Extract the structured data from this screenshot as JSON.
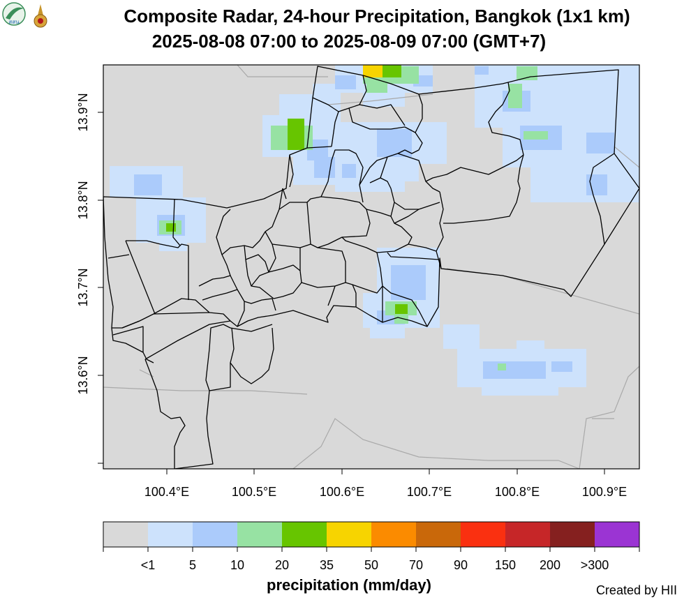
{
  "header": {
    "title_line1": "Composite Radar, 24-hour Precipitation, Bangkok (1x1 km)",
    "title_line2": "2025-08-08 07:00 to 2025-08-09 07:00 (GMT+7)"
  },
  "logos": [
    {
      "name": "hii-logo",
      "text": "สสน"
    },
    {
      "name": "royal-emblem",
      "text": ""
    }
  ],
  "axes": {
    "x_ticks": [
      "100.4°E",
      "100.5°E",
      "100.6°E",
      "100.7°E",
      "100.8°E",
      "100.9°E"
    ],
    "y_ticks": [
      "13.9°N",
      "13.8°N",
      "13.7°N",
      "13.6°N"
    ]
  },
  "legend": {
    "title": "precipitation (mm/day)",
    "labels": [
      "<1",
      "5",
      "10",
      "20",
      "35",
      "50",
      "70",
      "90",
      "150",
      "200",
      ">300"
    ],
    "colors": [
      "#d9d9d9",
      "#cde2fc",
      "#abcbfb",
      "#97e2a3",
      "#67c500",
      "#f7d400",
      "#fb8b00",
      "#c9680a",
      "#fa3010",
      "#c62628",
      "#85201f",
      "#9b34d3"
    ]
  },
  "footer": {
    "credit": "Created by HII"
  }
}
